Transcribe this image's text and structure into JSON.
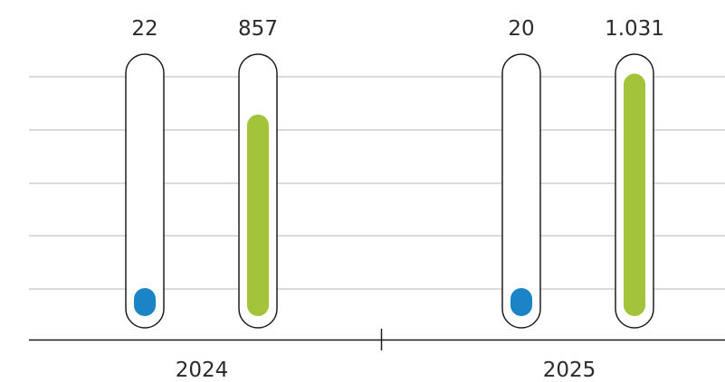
{
  "chart_data": {
    "type": "bar",
    "categories": [
      "2024",
      "2025"
    ],
    "series": [
      {
        "values": [
          22,
          20
        ],
        "display": [
          "22",
          "20"
        ],
        "color": "#1a84c6"
      },
      {
        "values": [
          857,
          1031
        ],
        "display": [
          "857",
          "1.031"
        ],
        "color": "#a2c33a"
      }
    ],
    "ylim": [
      0,
      1060
    ],
    "grid": true
  }
}
